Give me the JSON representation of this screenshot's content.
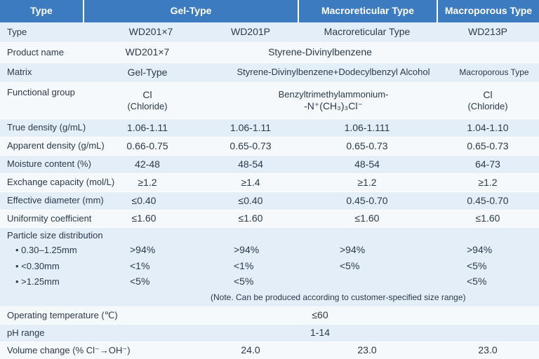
{
  "header": {
    "col0": "Type",
    "col1": "Gel-Type",
    "col2": "Macroreticular Type",
    "col3": "Macroporous Type"
  },
  "rows": {
    "type": {
      "label": "Type",
      "v1": "WD201×7",
      "v2": "WD201P",
      "v3": "Macroreticular Type",
      "v4": "WD213P"
    },
    "product": {
      "label": "Product name",
      "v1": "WD201×7",
      "v2": "Styrene-Divinylbenzene"
    },
    "matrix": {
      "label": "Matrix",
      "v1": "Gel-Type",
      "v2": "Styrene-Divinylbenzene+Dodecylbenzyl Alcohol",
      "v3": "Macroporous Type"
    },
    "functional": {
      "label": "Functional group",
      "v1a": "Cl",
      "v1b": "(Chloride)",
      "v2a": "Benzyltrimethylammonium-",
      "v2b": "-N⁺(CH₃)₃Cl⁻",
      "v3a": "Cl",
      "v3b": "(Chloride)"
    },
    "true_density": {
      "label": "True density (g/mL)",
      "v1": "1.06-1.11",
      "v2": "1.06-1.11",
      "v3": "1.06-1.111",
      "v4": "1.04-1.10"
    },
    "apparent_density": {
      "label": "Apparent density (g/mL)",
      "v1": "0.66-0.75",
      "v2": "0.65-0.73",
      "v3": "0.65-0.73",
      "v4": "0.65-0.73"
    },
    "moisture": {
      "label": "Moisture content (%)",
      "v1": "42-48",
      "v2": "48-54",
      "v3": "48-54",
      "v4": "64-73"
    },
    "exchange": {
      "label": "Exchange capacity (mol/L)",
      "v1": "≥1.2",
      "v2": "≥1.4",
      "v3": "≥1.2",
      "v4": "≥1.2"
    },
    "effective": {
      "label": "Effective diameter (mm)",
      "v1": "≤0.40",
      "v2": "≤0.40",
      "v3": "0.45-0.70",
      "v4": "0.45-0.70"
    },
    "uniformity": {
      "label": "Uniformity coefficient",
      "v1": "≤1.60",
      "v2": "≤1.60",
      "v3": "≤1.60",
      "v4": "≤1.60"
    },
    "psd": {
      "label": "Particle size distribution",
      "r1": {
        "label": "• 0.30–1.25mm",
        "v1": ">94%",
        "v2": ">94%",
        "v3": ">94%",
        "v4": ">94%"
      },
      "r2": {
        "label": "• <0.30mm",
        "v1": "<1%",
        "v2": "<1%",
        "v3": "<5%",
        "v4": "<5%"
      },
      "r3": {
        "label": "• >1.25mm",
        "v1": "<5%",
        "v2": "<5%",
        "v4": "<5%"
      },
      "note": "(Note. Can be produced according to customer-specified size range)"
    },
    "operating": {
      "label": "Operating temperature (℃)",
      "v": "≤60"
    },
    "ph": {
      "label": "pH range",
      "v": "1-14"
    },
    "volume": {
      "label": "Volume change (% Cl⁻→OH⁻)",
      "v2": "24.0",
      "v3": "23.0",
      "v4": "23.0"
    }
  },
  "colors": {
    "header": "#3d7bc0",
    "row_light": "#e4eef8",
    "row_white": "#f6f9fc",
    "text": "#2b3a4a"
  }
}
